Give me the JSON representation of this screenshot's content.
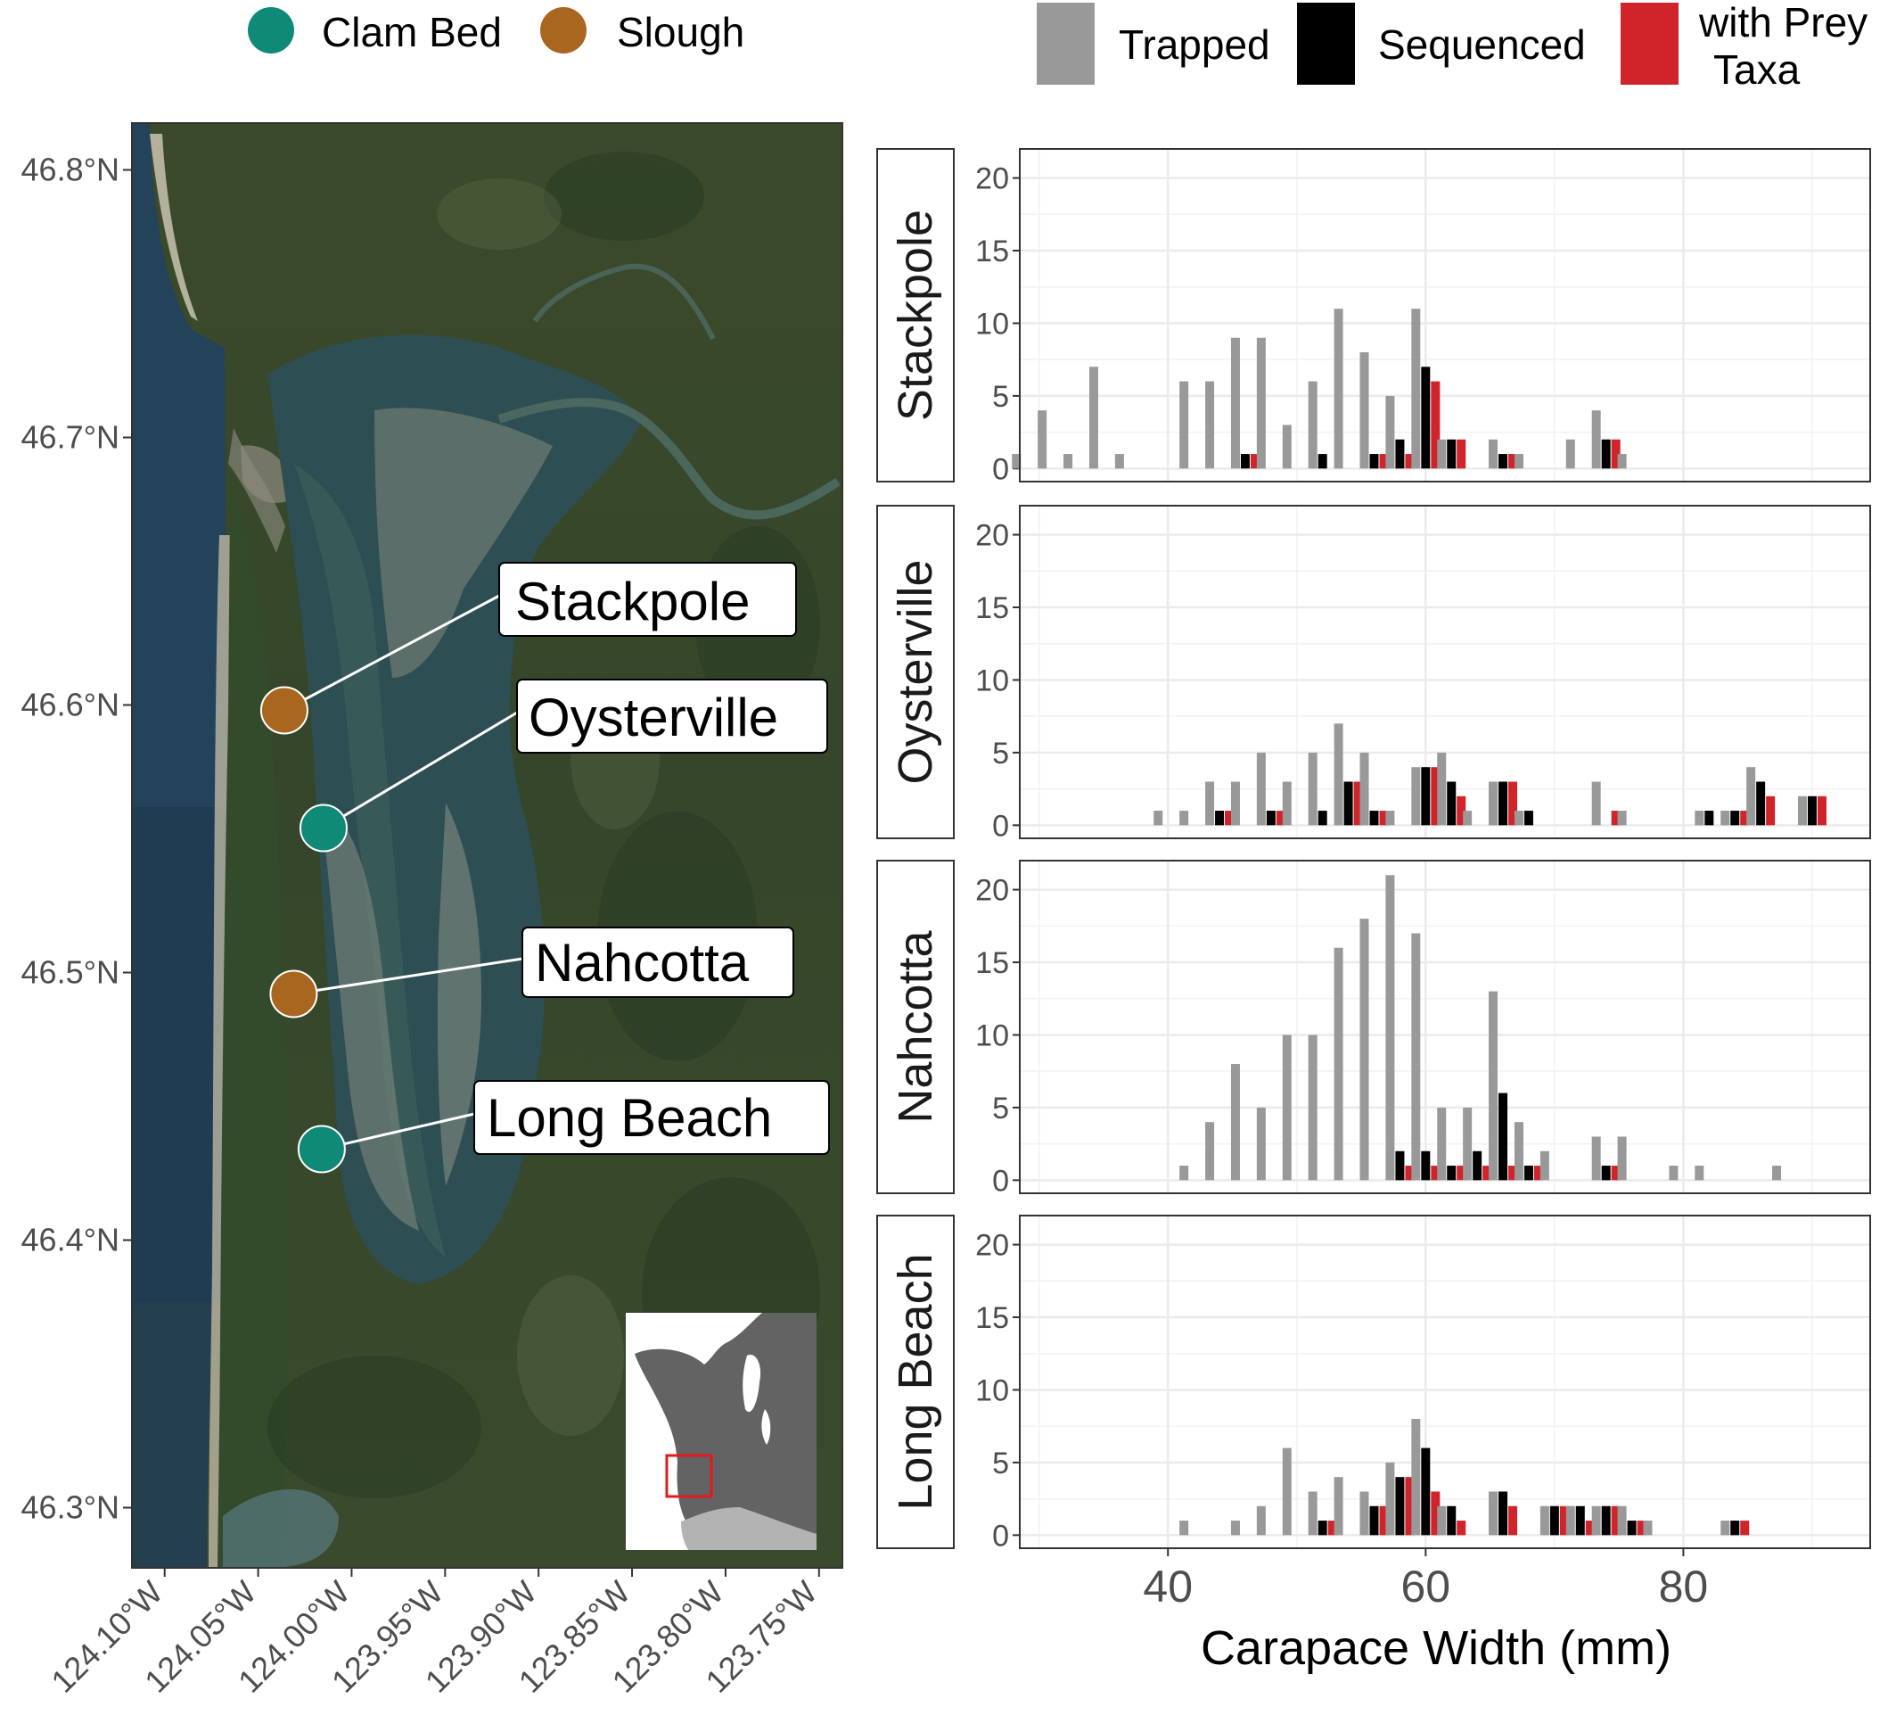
{
  "map_legend": {
    "items": [
      {
        "label": "Clam Bed",
        "color": "#0f8a76"
      },
      {
        "label": "Slough",
        "color": "#a8661e"
      }
    ]
  },
  "map": {
    "lat_ticks": [
      "46.8°N",
      "46.7°N",
      "46.6°N",
      "46.5°N",
      "46.4°N",
      "46.3°N"
    ],
    "lat_values": [
      46.8,
      46.7,
      46.6,
      46.5,
      46.4,
      46.3
    ],
    "lon_ticks": [
      "124.10°W",
      "124.05°W",
      "124.00°W",
      "123.95°W",
      "123.90°W",
      "123.85°W",
      "123.80°W",
      "123.75°W"
    ],
    "lon_values": [
      -124.1,
      -124.05,
      -124.0,
      -123.95,
      -123.9,
      -123.85,
      -123.8,
      -123.75
    ],
    "lat_range": [
      46.2775,
      46.8175
    ],
    "lon_range": [
      -124.1175,
      -123.7375
    ],
    "sites": [
      {
        "name": "Stackpole",
        "type": "Slough",
        "lat": 46.598,
        "lon": -124.036
      },
      {
        "name": "Oysterville",
        "type": "Clam Bed",
        "lat": 46.554,
        "lon": -124.015
      },
      {
        "name": "Nahcotta",
        "type": "Slough",
        "lat": 46.492,
        "lon": -124.031
      },
      {
        "name": "Long Beach",
        "type": "Clam Bed",
        "lat": 46.434,
        "lon": -124.016
      }
    ]
  },
  "chart_legend": {
    "items": [
      {
        "label": "Trapped",
        "color": "#999999"
      },
      {
        "label": "Sequenced",
        "color": "#000000"
      },
      {
        "label_line1": "with Prey",
        "label_line2": "Taxa",
        "color": "#d0242a"
      }
    ]
  },
  "chart_data": {
    "type": "bar",
    "xlabel": "Carapace Width (mm)",
    "x_ticks": [
      40,
      60,
      80
    ],
    "y_ticks": [
      0,
      5,
      10,
      15,
      20
    ],
    "xlim": [
      28.5,
      94.5
    ],
    "ylim": [
      -0.9,
      22
    ],
    "series": [
      {
        "name": "Trapped",
        "color": "#999999"
      },
      {
        "name": "Sequenced",
        "color": "#000000"
      },
      {
        "name": "with Prey Taxa",
        "color": "#d0242a"
      }
    ],
    "panels": [
      {
        "name": "Stackpole",
        "values": [
          [
            29,
            1,
            0,
            0
          ],
          [
            31,
            4,
            0,
            0
          ],
          [
            33,
            1,
            0,
            0
          ],
          [
            35,
            7,
            0,
            0
          ],
          [
            37,
            1,
            0,
            0
          ],
          [
            42,
            6,
            0,
            0
          ],
          [
            44,
            6,
            0,
            0
          ],
          [
            46,
            9,
            1,
            1
          ],
          [
            48,
            9,
            0,
            0
          ],
          [
            50,
            3,
            0,
            0
          ],
          [
            52,
            6,
            1,
            0
          ],
          [
            54,
            11,
            0,
            0
          ],
          [
            56,
            8,
            1,
            1
          ],
          [
            58,
            5,
            2,
            1
          ],
          [
            60,
            11,
            7,
            6
          ],
          [
            62,
            2,
            2,
            2
          ],
          [
            64,
            0,
            0,
            0
          ],
          [
            66,
            2,
            1,
            1
          ],
          [
            68,
            1,
            0,
            0
          ],
          [
            70,
            0,
            0,
            0
          ],
          [
            72,
            2,
            0,
            0
          ],
          [
            74,
            4,
            2,
            2
          ],
          [
            76,
            1,
            0,
            0
          ]
        ]
      },
      {
        "name": "Oysterville",
        "values": [
          [
            40,
            1,
            0,
            0
          ],
          [
            42,
            1,
            0,
            0
          ],
          [
            44,
            3,
            1,
            1
          ],
          [
            46,
            3,
            0,
            0
          ],
          [
            48,
            5,
            1,
            1
          ],
          [
            50,
            3,
            0,
            0
          ],
          [
            52,
            5,
            1,
            0
          ],
          [
            54,
            7,
            3,
            3
          ],
          [
            56,
            5,
            1,
            1
          ],
          [
            58,
            1,
            0,
            0
          ],
          [
            60,
            4,
            4,
            4
          ],
          [
            62,
            5,
            3,
            2
          ],
          [
            64,
            1,
            0,
            0
          ],
          [
            66,
            3,
            3,
            3
          ],
          [
            68,
            1,
            1,
            0
          ],
          [
            70,
            0,
            0,
            0
          ],
          [
            72,
            0,
            0,
            0
          ],
          [
            74,
            3,
            0,
            1
          ],
          [
            76,
            1,
            0,
            0
          ],
          [
            78,
            0,
            0,
            0
          ],
          [
            80,
            0,
            0,
            0
          ],
          [
            82,
            1,
            1,
            0
          ],
          [
            84,
            1,
            1,
            1
          ],
          [
            86,
            4,
            3,
            2
          ],
          [
            88,
            0,
            0,
            0
          ],
          [
            90,
            2,
            2,
            2
          ]
        ]
      },
      {
        "name": "Nahcotta",
        "values": [
          [
            42,
            1,
            0,
            0
          ],
          [
            44,
            4,
            0,
            0
          ],
          [
            46,
            8,
            0,
            0
          ],
          [
            48,
            5,
            0,
            0
          ],
          [
            50,
            10,
            0,
            0
          ],
          [
            52,
            10,
            0,
            0
          ],
          [
            54,
            16,
            0,
            0
          ],
          [
            56,
            18,
            0,
            0
          ],
          [
            58,
            21,
            2,
            1
          ],
          [
            60,
            17,
            2,
            1
          ],
          [
            62,
            5,
            1,
            1
          ],
          [
            64,
            5,
            2,
            1
          ],
          [
            66,
            13,
            6,
            1
          ],
          [
            68,
            4,
            1,
            1
          ],
          [
            70,
            2,
            0,
            0
          ],
          [
            72,
            0,
            0,
            0
          ],
          [
            74,
            3,
            1,
            1
          ],
          [
            76,
            3,
            0,
            0
          ],
          [
            78,
            0,
            0,
            0
          ],
          [
            80,
            1,
            0,
            0
          ],
          [
            82,
            1,
            0,
            0
          ],
          [
            84,
            0,
            0,
            0
          ],
          [
            86,
            0,
            0,
            0
          ],
          [
            88,
            1,
            0,
            0
          ]
        ]
      },
      {
        "name": "Long Beach",
        "values": [
          [
            42,
            1,
            0,
            0
          ],
          [
            44,
            0,
            0,
            0
          ],
          [
            46,
            1,
            0,
            0
          ],
          [
            48,
            2,
            0,
            0
          ],
          [
            50,
            6,
            0,
            0
          ],
          [
            52,
            3,
            1,
            1
          ],
          [
            54,
            4,
            0,
            0
          ],
          [
            56,
            3,
            2,
            2
          ],
          [
            58,
            5,
            4,
            4
          ],
          [
            60,
            8,
            6,
            3
          ],
          [
            62,
            2,
            2,
            1
          ],
          [
            64,
            0,
            0,
            0
          ],
          [
            66,
            3,
            3,
            2
          ],
          [
            68,
            0,
            0,
            0
          ],
          [
            70,
            2,
            2,
            2
          ],
          [
            72,
            2,
            2,
            1
          ],
          [
            74,
            2,
            2,
            2
          ],
          [
            76,
            2,
            1,
            1
          ],
          [
            78,
            1,
            0,
            0
          ],
          [
            80,
            0,
            0,
            0
          ],
          [
            82,
            0,
            0,
            0
          ],
          [
            84,
            1,
            1,
            1
          ]
        ]
      }
    ]
  }
}
